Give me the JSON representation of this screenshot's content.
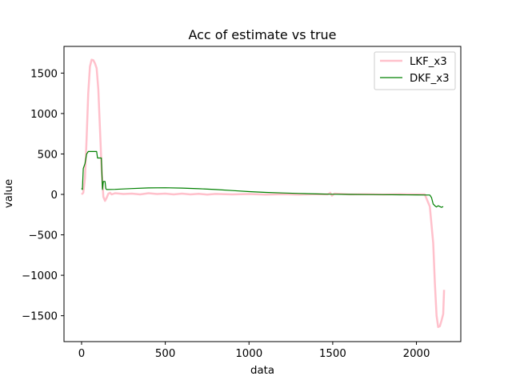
{
  "chart_data": {
    "type": "line",
    "title": "Acc of estimate vs true",
    "xlabel": "data",
    "ylabel": "value",
    "xlim": [
      -105,
      2265
    ],
    "ylim": [
      -1820,
      1830
    ],
    "xticks": [
      0,
      500,
      1000,
      1500,
      2000
    ],
    "yticks": [
      -1500,
      -1000,
      -500,
      0,
      500,
      1000,
      1500
    ],
    "grid": false,
    "legend_position": "top-right",
    "series": [
      {
        "name": "LKF_x3",
        "color": "#ffc0cb",
        "points": [
          [
            0,
            0
          ],
          [
            10,
            20
          ],
          [
            20,
            200
          ],
          [
            30,
            700
          ],
          [
            40,
            1250
          ],
          [
            50,
            1580
          ],
          [
            60,
            1665
          ],
          [
            70,
            1660
          ],
          [
            80,
            1620
          ],
          [
            90,
            1560
          ],
          [
            100,
            1300
          ],
          [
            110,
            800
          ],
          [
            120,
            300
          ],
          [
            130,
            -30
          ],
          [
            140,
            -80
          ],
          [
            150,
            -40
          ],
          [
            160,
            10
          ],
          [
            170,
            20
          ],
          [
            180,
            0
          ],
          [
            200,
            15
          ],
          [
            250,
            5
          ],
          [
            300,
            10
          ],
          [
            350,
            0
          ],
          [
            400,
            15
          ],
          [
            450,
            5
          ],
          [
            500,
            10
          ],
          [
            550,
            0
          ],
          [
            600,
            10
          ],
          [
            650,
            0
          ],
          [
            700,
            8
          ],
          [
            750,
            -3
          ],
          [
            800,
            6
          ],
          [
            900,
            0
          ],
          [
            1000,
            5
          ],
          [
            1100,
            -2
          ],
          [
            1200,
            3
          ],
          [
            1300,
            -2
          ],
          [
            1400,
            2
          ],
          [
            1470,
            0
          ],
          [
            1485,
            20
          ],
          [
            1495,
            -15
          ],
          [
            1510,
            10
          ],
          [
            1600,
            0
          ],
          [
            1700,
            2
          ],
          [
            1800,
            -1
          ],
          [
            1900,
            2
          ],
          [
            2000,
            0
          ],
          [
            2050,
            0
          ],
          [
            2080,
            -150
          ],
          [
            2100,
            -600
          ],
          [
            2110,
            -1100
          ],
          [
            2120,
            -1500
          ],
          [
            2130,
            -1640
          ],
          [
            2140,
            -1630
          ],
          [
            2150,
            -1560
          ],
          [
            2160,
            -1480
          ],
          [
            2165,
            -1180
          ]
        ]
      },
      {
        "name": "DKF_x3",
        "color": "#008000",
        "points": [
          [
            0,
            75
          ],
          [
            5,
            60
          ],
          [
            10,
            320
          ],
          [
            20,
            380
          ],
          [
            30,
            500
          ],
          [
            40,
            530
          ],
          [
            90,
            530
          ],
          [
            95,
            450
          ],
          [
            118,
            450
          ],
          [
            125,
            60
          ],
          [
            130,
            160
          ],
          [
            140,
            160
          ],
          [
            145,
            70
          ],
          [
            150,
            60
          ],
          [
            200,
            62
          ],
          [
            300,
            72
          ],
          [
            400,
            80
          ],
          [
            500,
            82
          ],
          [
            600,
            78
          ],
          [
            700,
            70
          ],
          [
            800,
            60
          ],
          [
            900,
            48
          ],
          [
            1000,
            35
          ],
          [
            1100,
            25
          ],
          [
            1200,
            18
          ],
          [
            1300,
            12
          ],
          [
            1400,
            6
          ],
          [
            1500,
            2
          ],
          [
            1600,
            0
          ],
          [
            1700,
            -2
          ],
          [
            1800,
            -3
          ],
          [
            1900,
            -5
          ],
          [
            2000,
            -6
          ],
          [
            2080,
            -8
          ],
          [
            2090,
            -40
          ],
          [
            2100,
            -120
          ],
          [
            2110,
            -140
          ],
          [
            2120,
            -155
          ],
          [
            2130,
            -140
          ],
          [
            2140,
            -150
          ],
          [
            2150,
            -160
          ],
          [
            2160,
            -150
          ]
        ]
      }
    ]
  }
}
